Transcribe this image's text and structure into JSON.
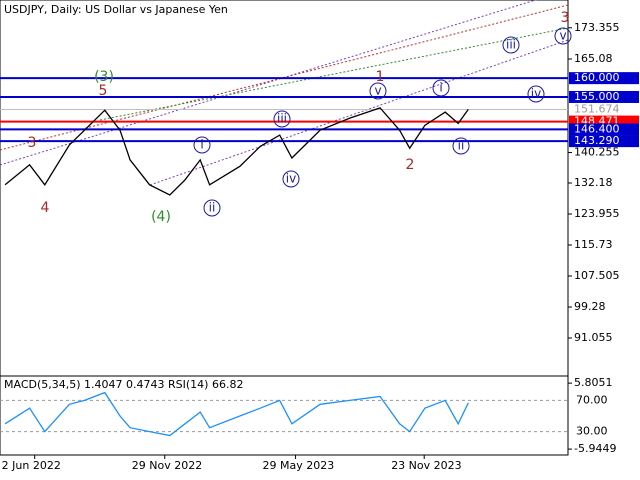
{
  "chart_data": [
    {
      "type": "line",
      "title": "USDJPY, Daily:  US Dollar vs Japanese Yen",
      "x": [
        "2022-04-22",
        "2022-05-26",
        "2022-06-16",
        "2022-07-20",
        "2022-08-10",
        "2022-09-07",
        "2022-09-28",
        "2022-10-12",
        "2022-11-08",
        "2022-12-06",
        "2022-12-27",
        "2023-01-17",
        "2023-01-30",
        "2023-03-13",
        "2023-04-10",
        "2023-05-07",
        "2023-05-24",
        "2023-07-02",
        "2023-08-12",
        "2023-09-23",
        "2023-10-20",
        "2023-11-03",
        "2023-11-24",
        "2023-12-22",
        "2024-01-09",
        "2024-01-23"
      ],
      "series": [
        {
          "name": "USDJPY",
          "color": "#000000",
          "values": [
            131.7,
            137,
            131.7,
            142.3,
            146.2,
            151.5,
            146.2,
            138.3,
            131.7,
            129,
            133,
            138.3,
            131.7,
            136.6,
            141.9,
            144.9,
            138.8,
            146.2,
            149.4,
            152.1,
            146.2,
            141.4,
            147.5,
            151,
            148,
            151.7
          ]
        }
      ],
      "xlim": [
        "2022-04-15",
        "2024-06-09"
      ],
      "xticks": [
        {
          "value": "2022-06-02",
          "label": "2 Jun 2022"
        },
        {
          "value": "2022-11-29",
          "label": "29 Nov 2022"
        },
        {
          "value": "2023-05-29",
          "label": "29 May 2023"
        },
        {
          "value": "2023-11-23",
          "label": "23 Nov 2023"
        }
      ],
      "ylim": [
        81.24,
        180.73
      ],
      "yticks": [
        91.055,
        99.28,
        107.505,
        115.73,
        123.955,
        132.18,
        140.255,
        165.08,
        173.355
      ],
      "levels": [
        {
          "value": 160,
          "label": "160.000",
          "color": "#0000cc"
        },
        {
          "value": 155,
          "label": "155.000",
          "color": "#0000cc"
        },
        {
          "value": 151.674,
          "label": "151.674",
          "color": "#c0c0c0"
        },
        {
          "value": 148.471,
          "label": "148.471",
          "color": "#ff0000"
        },
        {
          "value": 146.4,
          "label": "146.400",
          "color": "#0000cc"
        },
        {
          "value": 143.29,
          "label": "143.290",
          "color": "#0000cc"
        }
      ],
      "annotations": [
        {
          "text": "3",
          "color": "#a52a2a",
          "circled": false
        },
        {
          "text": "4",
          "color": "#a52a2a",
          "circled": false
        },
        {
          "text": "5",
          "color": "#a52a2a",
          "circled": false
        },
        {
          "text": "(3)",
          "color": "#2e8b2e",
          "circled": false
        },
        {
          "text": "(4)",
          "color": "#2e8b2e",
          "circled": false
        },
        {
          "text": "i",
          "color": "#1a1aa0",
          "circled": true
        },
        {
          "text": "ii",
          "color": "#1a1aa0",
          "circled": true
        },
        {
          "text": "iii",
          "color": "#1a1aa0",
          "circled": true
        },
        {
          "text": "iv",
          "color": "#1a1aa0",
          "circled": true
        },
        {
          "text": "v",
          "color": "#1a1aa0",
          "circled": true
        },
        {
          "text": "1",
          "color": "#a52a2a",
          "circled": false
        },
        {
          "text": "2",
          "color": "#a52a2a",
          "circled": false
        },
        {
          "text": "i",
          "color": "#1a1aa0",
          "circled": true
        },
        {
          "text": "ii",
          "color": "#1a1aa0",
          "circled": true
        },
        {
          "text": "iii",
          "color": "#1a1aa0",
          "circled": true
        },
        {
          "text": "iv",
          "color": "#1a1aa0",
          "circled": true
        },
        {
          "text": "v",
          "color": "#1a1aa0",
          "circled": true
        },
        {
          "text": "3",
          "color": "#a52a2a",
          "circled": false
        }
      ]
    },
    {
      "type": "line",
      "title": "MACD(5,34,5) 1.4047 0.4743 RSI(14) 66.82",
      "series": [
        {
          "name": "RSI(14)",
          "color": "#1e90ff",
          "values": [
            40,
            60,
            30,
            65,
            70,
            80,
            50,
            35,
            30,
            25,
            40,
            55,
            35,
            50,
            60,
            70,
            40,
            65,
            70,
            75,
            40,
            30,
            60,
            70,
            40,
            66.82
          ]
        }
      ],
      "ylim": [
        0,
        100
      ],
      "yticks": [
        {
          "value": 70,
          "label": "70.00"
        },
        {
          "value": 30,
          "label": "30.00"
        }
      ],
      "y2lim": [
        -7,
        6.9
      ],
      "y2ticks": [
        5.8051,
        -5.9449
      ]
    }
  ]
}
